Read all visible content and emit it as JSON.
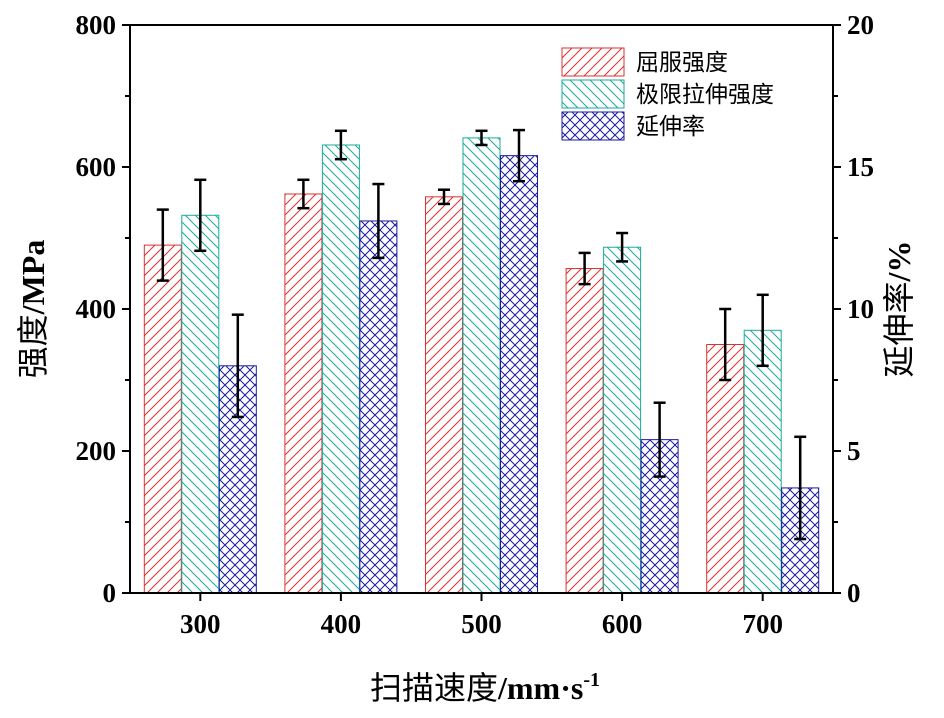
{
  "chart_data": {
    "type": "bar",
    "categories": [
      "300",
      "400",
      "500",
      "600",
      "700"
    ],
    "xlabel": {
      "cn": "扫描速度",
      "unit": "/mm·s",
      "sup": "-1"
    },
    "ylabel_left": {
      "cn": "强度",
      "unit": "/MPa"
    },
    "ylabel_right": {
      "cn": "延伸率",
      "unit": "/%"
    },
    "ylim_left": [
      0,
      800
    ],
    "yticks_left": [
      "0",
      "200",
      "400",
      "600",
      "800"
    ],
    "ylim_right": [
      0,
      20
    ],
    "yticks_right": [
      "0",
      "5",
      "10",
      "15",
      "20"
    ],
    "legend_position": "top-right",
    "series": [
      {
        "name": "屈服强度",
        "axis": "left",
        "color": "#e03030",
        "pattern": "diag-forward",
        "values": [
          490,
          562,
          558,
          457,
          350
        ],
        "errors": [
          50,
          20,
          10,
          22,
          50
        ]
      },
      {
        "name": "极限拉伸强度",
        "axis": "left",
        "color": "#1aab9b",
        "pattern": "diag-back",
        "values": [
          532,
          631,
          641,
          487,
          370
        ],
        "errors": [
          50,
          20,
          10,
          20,
          50
        ]
      },
      {
        "name": "延伸率",
        "axis": "right",
        "color": "#1a1aa0",
        "pattern": "crosshatch",
        "values": [
          8.0,
          13.1,
          15.4,
          5.4,
          3.7
        ],
        "errors": [
          1.8,
          1.3,
          0.9,
          1.3,
          1.8
        ]
      }
    ]
  }
}
